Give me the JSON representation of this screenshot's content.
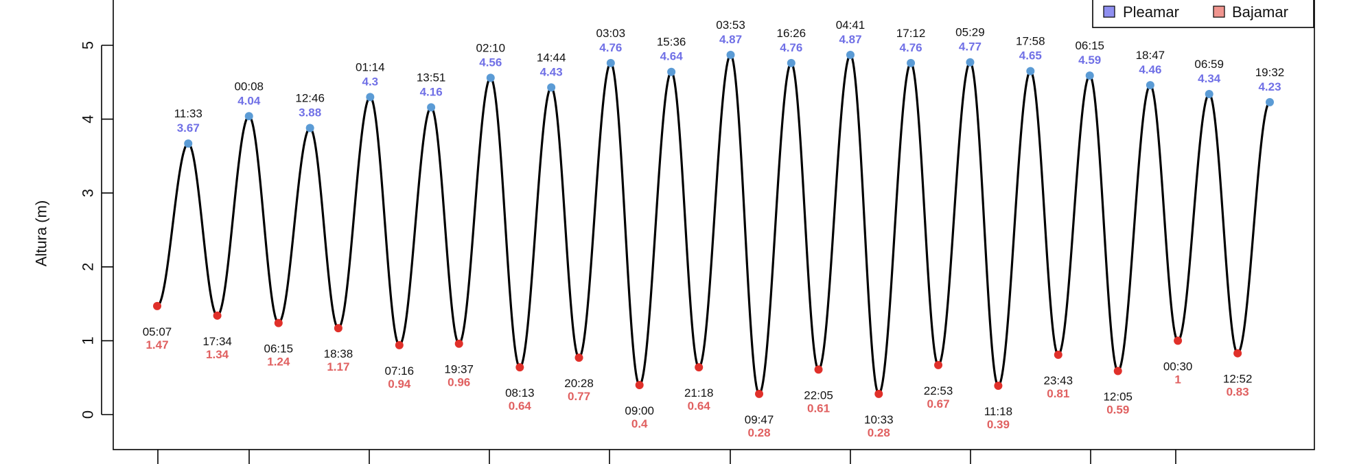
{
  "chart_data": {
    "type": "line",
    "ylabel": "Altura (m)",
    "ylim": [
      -0.5,
      5.6
    ],
    "yticks": [
      0,
      1,
      2,
      3,
      4,
      5
    ],
    "x_unit": "hours",
    "legend": {
      "placement": "top-right",
      "entries": [
        {
          "label": "Pleamar",
          "color": "#8f8ff0"
        },
        {
          "label": "Bajamar",
          "color": "#f0958f"
        }
      ]
    },
    "colors": {
      "curve": "#000000",
      "high_point": "#5b9bd5",
      "low_point": "#e0302a",
      "high_text": "#7070e6",
      "low_text": "#e06060"
    },
    "series": [
      {
        "name": "Bajamar",
        "points": [
          {
            "t": 5.12,
            "time": "05:07",
            "height": 1.47,
            "value": "1.47"
          },
          {
            "t": 17.57,
            "time": "17:34",
            "height": 1.34,
            "value": "1.34"
          },
          {
            "t": 30.25,
            "time": "06:15",
            "height": 1.24,
            "value": "1.24"
          },
          {
            "t": 42.63,
            "time": "18:38",
            "height": 1.17,
            "value": "1.17"
          },
          {
            "t": 55.27,
            "time": "07:16",
            "height": 0.94,
            "value": "0.94"
          },
          {
            "t": 67.62,
            "time": "19:37",
            "height": 0.96,
            "value": "0.96"
          },
          {
            "t": 80.22,
            "time": "08:13",
            "height": 0.64,
            "value": "0.64"
          },
          {
            "t": 92.47,
            "time": "20:28",
            "height": 0.77,
            "value": "0.77"
          },
          {
            "t": 105.0,
            "time": "09:00",
            "height": 0.4,
            "value": "0.4"
          },
          {
            "t": 117.3,
            "time": "21:18",
            "height": 0.64,
            "value": "0.64"
          },
          {
            "t": 129.78,
            "time": "09:47",
            "height": 0.28,
            "value": "0.28"
          },
          {
            "t": 142.08,
            "time": "22:05",
            "height": 0.61,
            "value": "0.61"
          },
          {
            "t": 154.55,
            "time": "10:33",
            "height": 0.28,
            "value": "0.28"
          },
          {
            "t": 166.88,
            "time": "22:53",
            "height": 0.67,
            "value": "0.67"
          },
          {
            "t": 179.3,
            "time": "11:18",
            "height": 0.39,
            "value": "0.39"
          },
          {
            "t": 191.72,
            "time": "23:43",
            "height": 0.81,
            "value": "0.81"
          },
          {
            "t": 204.08,
            "time": "12:05",
            "height": 0.59,
            "value": "0.59"
          },
          {
            "t": 216.5,
            "time": "00:30",
            "height": 1.0,
            "value": "1"
          },
          {
            "t": 228.87,
            "time": "12:52",
            "height": 0.83,
            "value": "0.83"
          }
        ]
      },
      {
        "name": "Pleamar",
        "points": [
          {
            "t": 11.55,
            "time": "11:33",
            "height": 3.67,
            "value": "3.67"
          },
          {
            "t": 24.13,
            "time": "00:08",
            "height": 4.04,
            "value": "4.04"
          },
          {
            "t": 36.77,
            "time": "12:46",
            "height": 3.88,
            "value": "3.88"
          },
          {
            "t": 49.23,
            "time": "01:14",
            "height": 4.3,
            "value": "4.3"
          },
          {
            "t": 61.85,
            "time": "13:51",
            "height": 4.16,
            "value": "4.16"
          },
          {
            "t": 74.17,
            "time": "02:10",
            "height": 4.56,
            "value": "4.56"
          },
          {
            "t": 86.73,
            "time": "14:44",
            "height": 4.43,
            "value": "4.43"
          },
          {
            "t": 99.05,
            "time": "03:03",
            "height": 4.76,
            "value": "4.76"
          },
          {
            "t": 111.6,
            "time": "15:36",
            "height": 4.64,
            "value": "4.64"
          },
          {
            "t": 123.88,
            "time": "03:53",
            "height": 4.87,
            "value": "4.87"
          },
          {
            "t": 136.43,
            "time": "16:26",
            "height": 4.76,
            "value": "4.76"
          },
          {
            "t": 148.68,
            "time": "04:41",
            "height": 4.87,
            "value": "4.87"
          },
          {
            "t": 161.2,
            "time": "17:12",
            "height": 4.76,
            "value": "4.76"
          },
          {
            "t": 173.48,
            "time": "05:29",
            "height": 4.77,
            "value": "4.77"
          },
          {
            "t": 185.97,
            "time": "17:58",
            "height": 4.65,
            "value": "4.65"
          },
          {
            "t": 198.25,
            "time": "06:15",
            "height": 4.59,
            "value": "4.59"
          },
          {
            "t": 210.78,
            "time": "18:47",
            "height": 4.46,
            "value": "4.46"
          },
          {
            "t": 222.98,
            "time": "06:59",
            "height": 4.34,
            "value": "4.34"
          },
          {
            "t": 235.53,
            "time": "19:32",
            "height": 4.23,
            "value": "4.23"
          }
        ]
      }
    ]
  }
}
